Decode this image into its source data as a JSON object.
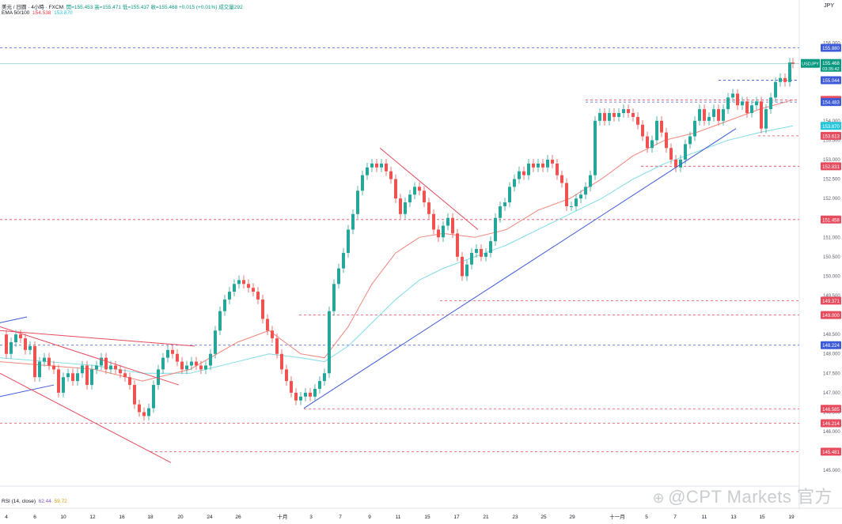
{
  "header": {
    "symbol_line": "美元 / 日圓 · 4小時 · FXCM",
    "ohlc_line": "開=155.453  高=155.471  低=155.437  收=155.468  +0.015 (+0.01%)  成交量292",
    "ema_label": "EMA 50/100",
    "ema_value_1": "154.538",
    "ema_value_2": "153.870",
    "rsi_label": "RSI (14, close)",
    "rsi_value_1": "62.44",
    "rsi_value_2": "59.72"
  },
  "axis": {
    "unit": "JPY"
  },
  "watermark": {
    "text": "@CPT Markets 官方"
  },
  "colors": {
    "up": "#26a69a",
    "down": "#ef5350",
    "ema50": "#f0857b",
    "ema100": "#7fdce6",
    "trend_blue": "#3d5bd9",
    "trend_red": "#e64b5e",
    "level_red": "#e64b5e",
    "level_blue": "#3d5bd9"
  },
  "chart_data": {
    "type": "candlestick",
    "symbol": "USDJPY",
    "timeframe": "4H",
    "y_axis": {
      "min": 144.8,
      "max": 156.5,
      "ticks": [
        145.0,
        145.5,
        146.0,
        146.5,
        147.0,
        147.5,
        148.0,
        148.5,
        149.0,
        149.5,
        150.0,
        150.5,
        151.0,
        151.5,
        152.0,
        152.5,
        153.0,
        153.5,
        154.0,
        154.5,
        155.0,
        155.5,
        156.0
      ]
    },
    "x_axis": {
      "labels": [
        "4",
        "6",
        "10",
        "12",
        "16",
        "18",
        "20",
        "24",
        "26",
        "十月",
        "3",
        "7",
        "9",
        "11",
        "15",
        "17",
        "21",
        "23",
        "25",
        "29",
        "十一月",
        "5",
        "7",
        "11",
        "13",
        "15",
        "19"
      ],
      "label_positions": [
        8,
        44,
        80,
        117,
        154,
        190,
        228,
        265,
        301,
        357,
        393,
        430,
        467,
        503,
        540,
        577,
        614,
        651,
        687,
        723,
        780,
        817,
        853,
        890,
        927,
        963,
        1000
      ]
    },
    "close_path": [
      [
        0,
        148.5
      ],
      [
        8,
        148.0
      ],
      [
        14,
        148.3
      ],
      [
        20,
        148.5
      ],
      [
        26,
        148.4
      ],
      [
        32,
        148.1
      ],
      [
        38,
        148.2
      ],
      [
        44,
        147.4
      ],
      [
        50,
        147.8
      ],
      [
        56,
        147.9
      ],
      [
        62,
        147.7
      ],
      [
        68,
        147.6
      ],
      [
        74,
        147.0
      ],
      [
        80,
        147.4
      ],
      [
        86,
        147.5
      ],
      [
        92,
        147.3
      ],
      [
        98,
        147.5
      ],
      [
        104,
        147.7
      ],
      [
        110,
        147.2
      ],
      [
        116,
        147.6
      ],
      [
        122,
        147.7
      ],
      [
        128,
        147.9
      ],
      [
        134,
        147.6
      ],
      [
        140,
        147.7
      ],
      [
        146,
        147.6
      ],
      [
        152,
        147.5
      ],
      [
        158,
        147.4
      ],
      [
        164,
        147.2
      ],
      [
        170,
        146.7
      ],
      [
        176,
        146.5
      ],
      [
        182,
        146.4
      ],
      [
        188,
        146.6
      ],
      [
        194,
        147.2
      ],
      [
        200,
        147.6
      ],
      [
        206,
        147.9
      ],
      [
        212,
        148.1
      ],
      [
        218,
        148.0
      ],
      [
        224,
        147.8
      ],
      [
        230,
        147.6
      ],
      [
        236,
        147.7
      ],
      [
        242,
        147.8
      ],
      [
        248,
        147.7
      ],
      [
        254,
        147.6
      ],
      [
        260,
        147.7
      ],
      [
        266,
        148.0
      ],
      [
        272,
        148.6
      ],
      [
        278,
        149.1
      ],
      [
        284,
        149.4
      ],
      [
        290,
        149.6
      ],
      [
        296,
        149.8
      ],
      [
        302,
        149.9
      ],
      [
        308,
        149.8
      ],
      [
        314,
        149.7
      ],
      [
        320,
        149.6
      ],
      [
        326,
        149.4
      ],
      [
        332,
        148.9
      ],
      [
        338,
        148.6
      ],
      [
        344,
        148.4
      ],
      [
        350,
        148.0
      ],
      [
        356,
        147.6
      ],
      [
        362,
        147.3
      ],
      [
        368,
        147.0
      ],
      [
        374,
        146.8
      ],
      [
        380,
        146.9
      ],
      [
        386,
        147.0
      ],
      [
        392,
        146.9
      ],
      [
        398,
        147.1
      ],
      [
        404,
        147.3
      ],
      [
        410,
        147.5
      ],
      [
        416,
        149.1
      ],
      [
        422,
        149.8
      ],
      [
        428,
        150.2
      ],
      [
        434,
        150.6
      ],
      [
        440,
        151.2
      ],
      [
        446,
        151.6
      ],
      [
        452,
        152.2
      ],
      [
        458,
        152.6
      ],
      [
        464,
        152.8
      ],
      [
        470,
        152.9
      ],
      [
        476,
        152.8
      ],
      [
        482,
        152.9
      ],
      [
        488,
        152.7
      ],
      [
        494,
        152.5
      ],
      [
        500,
        152.0
      ],
      [
        506,
        151.6
      ],
      [
        512,
        151.9
      ],
      [
        518,
        152.1
      ],
      [
        524,
        152.3
      ],
      [
        530,
        152.2
      ],
      [
        536,
        151.9
      ],
      [
        542,
        151.6
      ],
      [
        548,
        151.2
      ],
      [
        554,
        151.0
      ],
      [
        560,
        151.3
      ],
      [
        566,
        151.5
      ],
      [
        572,
        151.1
      ],
      [
        578,
        150.5
      ],
      [
        584,
        150.0
      ],
      [
        590,
        150.3
      ],
      [
        596,
        150.6
      ],
      [
        602,
        150.7
      ],
      [
        608,
        150.5
      ],
      [
        614,
        150.6
      ],
      [
        620,
        150.9
      ],
      [
        626,
        151.5
      ],
      [
        632,
        151.8
      ],
      [
        638,
        151.9
      ],
      [
        644,
        152.3
      ],
      [
        650,
        152.5
      ],
      [
        656,
        152.7
      ],
      [
        662,
        152.6
      ],
      [
        668,
        152.9
      ],
      [
        674,
        152.8
      ],
      [
        680,
        152.9
      ],
      [
        686,
        152.8
      ],
      [
        692,
        153.0
      ],
      [
        698,
        152.9
      ],
      [
        704,
        152.6
      ],
      [
        710,
        152.4
      ],
      [
        716,
        151.8
      ],
      [
        722,
        151.8
      ],
      [
        728,
        152.0
      ],
      [
        734,
        152.1
      ],
      [
        740,
        152.3
      ],
      [
        746,
        152.6
      ],
      [
        752,
        154.0
      ],
      [
        758,
        154.2
      ],
      [
        764,
        154.0
      ],
      [
        770,
        154.2
      ],
      [
        776,
        154.1
      ],
      [
        782,
        154.2
      ],
      [
        788,
        154.3
      ],
      [
        794,
        154.2
      ],
      [
        800,
        154.1
      ],
      [
        806,
        153.9
      ],
      [
        812,
        153.6
      ],
      [
        818,
        153.3
      ],
      [
        824,
        153.5
      ],
      [
        830,
        154.0
      ],
      [
        836,
        153.7
      ],
      [
        842,
        153.3
      ],
      [
        848,
        153.0
      ],
      [
        854,
        152.8
      ],
      [
        860,
        153.0
      ],
      [
        866,
        153.4
      ],
      [
        872,
        153.6
      ],
      [
        878,
        154.0
      ],
      [
        884,
        154.3
      ],
      [
        890,
        154.0
      ],
      [
        896,
        154.1
      ],
      [
        902,
        154.3
      ],
      [
        908,
        154.0
      ],
      [
        914,
        154.3
      ],
      [
        920,
        154.6
      ],
      [
        926,
        154.7
      ],
      [
        932,
        154.4
      ],
      [
        938,
        154.5
      ],
      [
        944,
        154.2
      ],
      [
        950,
        154.4
      ],
      [
        956,
        154.5
      ],
      [
        962,
        153.8
      ],
      [
        968,
        154.3
      ],
      [
        974,
        154.6
      ],
      [
        980,
        155.0
      ],
      [
        986,
        155.1
      ],
      [
        992,
        155.0
      ],
      [
        998,
        155.5
      ],
      [
        1002,
        155.47
      ]
    ],
    "ema50_path": [
      [
        0,
        147.8
      ],
      [
        60,
        147.7
      ],
      [
        120,
        147.6
      ],
      [
        180,
        147.3
      ],
      [
        240,
        147.6
      ],
      [
        300,
        148.3
      ],
      [
        340,
        148.6
      ],
      [
        380,
        148.0
      ],
      [
        410,
        147.9
      ],
      [
        440,
        148.7
      ],
      [
        470,
        149.8
      ],
      [
        500,
        150.6
      ],
      [
        530,
        151.0
      ],
      [
        560,
        151.1
      ],
      [
        600,
        151.0
      ],
      [
        640,
        151.2
      ],
      [
        680,
        151.7
      ],
      [
        720,
        152.0
      ],
      [
        760,
        152.5
      ],
      [
        800,
        153.1
      ],
      [
        840,
        153.5
      ],
      [
        880,
        153.7
      ],
      [
        920,
        154.0
      ],
      [
        960,
        154.3
      ],
      [
        1002,
        154.54
      ]
    ],
    "ema100_path": [
      [
        0,
        147.9
      ],
      [
        60,
        147.8
      ],
      [
        120,
        147.7
      ],
      [
        180,
        147.5
      ],
      [
        240,
        147.5
      ],
      [
        300,
        147.8
      ],
      [
        340,
        148.0
      ],
      [
        380,
        147.9
      ],
      [
        410,
        147.8
      ],
      [
        440,
        148.2
      ],
      [
        470,
        148.8
      ],
      [
        500,
        149.4
      ],
      [
        530,
        149.9
      ],
      [
        560,
        150.2
      ],
      [
        600,
        150.5
      ],
      [
        640,
        150.8
      ],
      [
        680,
        151.2
      ],
      [
        720,
        151.6
      ],
      [
        760,
        152.0
      ],
      [
        800,
        152.5
      ],
      [
        840,
        152.9
      ],
      [
        880,
        153.2
      ],
      [
        920,
        153.5
      ],
      [
        960,
        153.7
      ],
      [
        1002,
        153.87
      ]
    ],
    "trendlines": [
      {
        "color": "trend_blue",
        "from": [
          384,
          146.6
        ],
        "to": [
          930,
          153.8
        ]
      },
      {
        "color": "trend_blue",
        "from": [
          0,
          148.8
        ],
        "to": [
          34,
          148.95
        ]
      },
      {
        "color": "trend_blue",
        "from": [
          0,
          146.9
        ],
        "to": [
          68,
          147.2
        ]
      },
      {
        "color": "trend_red",
        "from": [
          0,
          148.6
        ],
        "to": [
          246,
          148.2
        ]
      },
      {
        "color": "trend_red",
        "from": [
          0,
          148.7
        ],
        "to": [
          226,
          147.2
        ]
      },
      {
        "color": "trend_red",
        "from": [
          0,
          147.5
        ],
        "to": [
          216,
          145.2
        ]
      },
      {
        "color": "trend_red",
        "from": [
          480,
          153.3
        ],
        "to": [
          604,
          151.2
        ]
      }
    ],
    "horizontal_levels": [
      {
        "value": 155.88,
        "label": "155.880",
        "color": "level_blue",
        "x_from": 0
      },
      {
        "value": 155.044,
        "label": "155.044",
        "color": "level_blue",
        "x_from": 908
      },
      {
        "value": 154.538,
        "label": "154.538",
        "color": "level_red",
        "x_from": 740
      },
      {
        "value": 154.483,
        "label": "154.483",
        "color": "level_blue",
        "x_from": 740
      },
      {
        "value": 153.613,
        "label": "153.613",
        "color": "level_red",
        "x_from": 958
      },
      {
        "value": 152.831,
        "label": "152.831",
        "color": "level_red",
        "x_from": 810
      },
      {
        "value": 151.458,
        "label": "151.458",
        "color": "level_red",
        "x_from": 0
      },
      {
        "value": 149.371,
        "label": "149.371",
        "color": "level_red",
        "x_from": 556
      },
      {
        "value": 149.0,
        "label": "149.000",
        "color": "level_red",
        "x_from": 378
      },
      {
        "value": 148.224,
        "label": "148.224",
        "color": "level_blue",
        "x_from": 0
      },
      {
        "value": 146.585,
        "label": "146.585",
        "color": "level_red",
        "x_from": 384
      },
      {
        "value": 146.214,
        "label": "146.214",
        "color": "level_red",
        "x_from": 0
      },
      {
        "value": 145.481,
        "label": "145.481",
        "color": "level_red",
        "x_from": 190
      }
    ],
    "price_badges": [
      {
        "label": "USDJPY",
        "value": "155.468",
        "sub": "03:35:42",
        "price": 155.468
      },
      {
        "label": "",
        "value": "153.870",
        "price": 153.87
      }
    ]
  }
}
